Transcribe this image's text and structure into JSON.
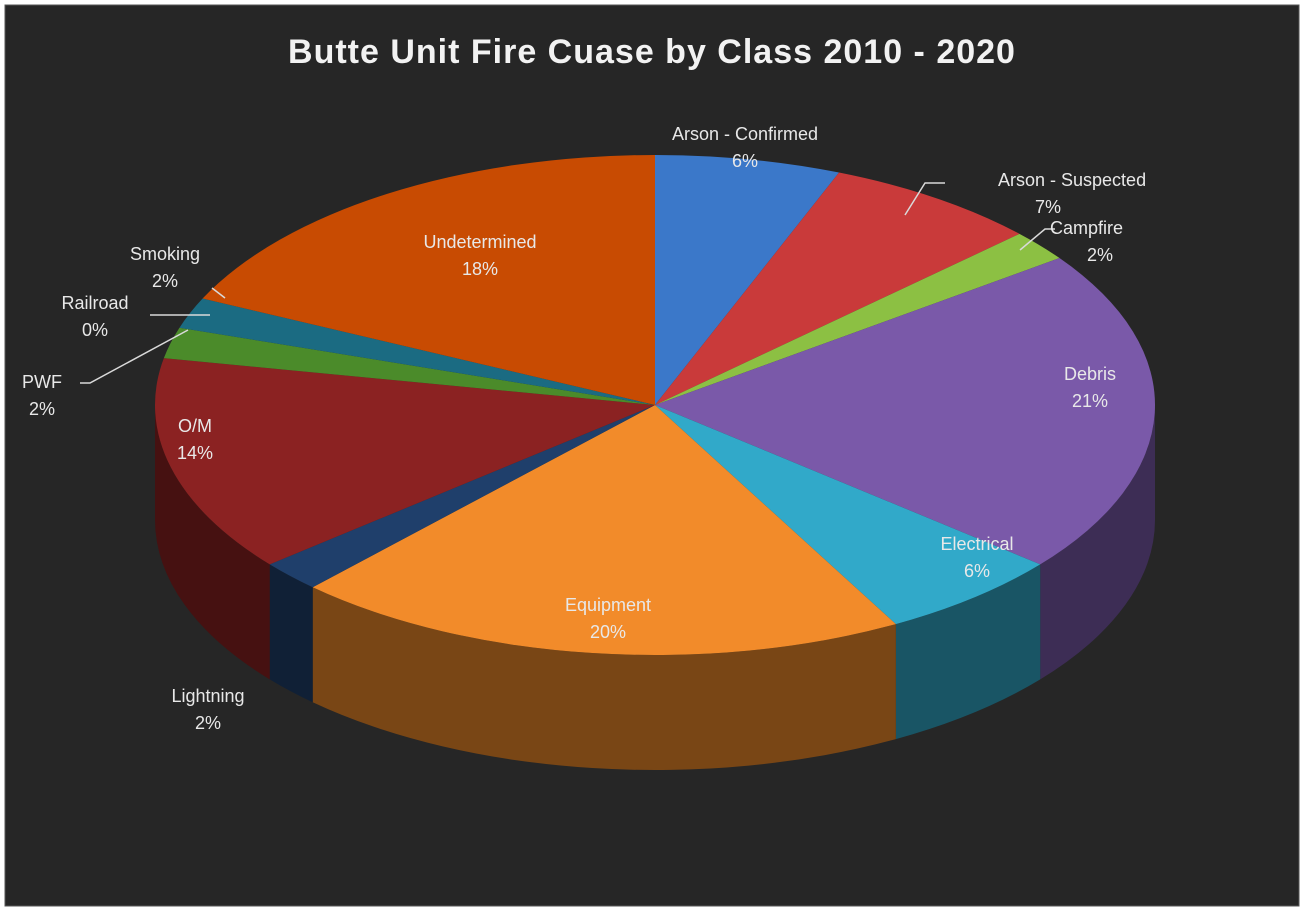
{
  "chart_data": {
    "type": "pie3d",
    "title": "Butte Unit Fire Cuase by Class 2010 - 2020",
    "categories": [
      "Arson - Confirmed",
      "Arson - Suspected",
      "Campfire",
      "Debris",
      "Electrical",
      "Equipment",
      "Lightning",
      "O/M",
      "PWF",
      "Railroad",
      "Smoking",
      "Undetermined"
    ],
    "values": [
      6,
      7,
      2,
      21,
      6,
      20,
      2,
      14,
      2,
      0,
      2,
      18
    ],
    "value_labels": [
      "6%",
      "7%",
      "2%",
      "21%",
      "6%",
      "20%",
      "2%",
      "14%",
      "2%",
      "0%",
      "2%",
      "18%"
    ],
    "colors": [
      "#3b78c9",
      "#c93a3a",
      "#8cc043",
      "#7a59a9",
      "#31a9c9",
      "#f28b2a",
      "#1f3f6b",
      "#8b2222",
      "#4b8b2a",
      "#5b3b7b",
      "#1b6b82",
      "#c84b02"
    ]
  }
}
